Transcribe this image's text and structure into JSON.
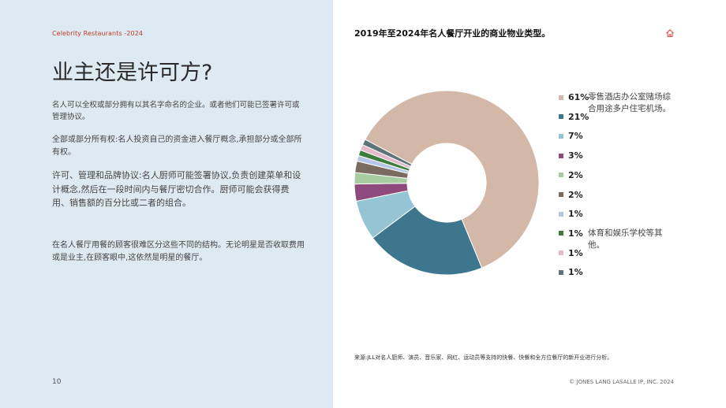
{
  "header": {
    "running_head": "Celebrity Restaurants -2024"
  },
  "left": {
    "title": "业主还是许可方?",
    "paragraphs": [
      "名人可以全权或部分拥有以其名字命名的企业。或者他们可能已签署许可或管理协议。",
      "全部或部分所有权:名人投资自己的资金进入餐厅概念,承担部分或全部所有权。",
      "许可、管理和品牌协议:名人厨师可能签署协议,负责创建菜单和设计概念,然后在一段时间内与餐厅密切合作。厨师可能会获得费用、销售额的百分比或二者的组合。",
      "在名人餐厅用餐的顾客很难区分这些不同的结构。无论明星是否收取费用或是业主,在顾客眼中,这依然是明星的餐厅。"
    ]
  },
  "footer": {
    "page_number": "10",
    "source": "来源:JLL对名人厨师、演员、音乐家、网红、运动员等支持的快餐、快餐和全方位餐厅的新开业进行分析。",
    "copyright": "© JONES LANG LASALLE IP, INC. 2024"
  },
  "icons": {
    "home": "home-icon"
  },
  "chart_data": {
    "type": "pie",
    "donut": true,
    "title": "2019年至2024年名人餐厅开业的商业物业类型。",
    "slices": [
      {
        "label": "61%",
        "value": 61,
        "color": "#d4b8a7"
      },
      {
        "label": "21%",
        "value": 21,
        "color": "#3e768d"
      },
      {
        "label": "7%",
        "value": 7,
        "color": "#95c4d4"
      },
      {
        "label": "3%",
        "value": 3,
        "color": "#8f4a7d"
      },
      {
        "label": "2%",
        "value": 2,
        "color": "#a6cc9f"
      },
      {
        "label": "2%",
        "value": 2,
        "color": "#7b6a5f"
      },
      {
        "label": "1%",
        "value": 1,
        "color": "#b6c6e6"
      },
      {
        "label": "1%",
        "value": 1,
        "color": "#3d7d3c"
      },
      {
        "label": "1%",
        "value": 1,
        "color": "#e4b9c9"
      },
      {
        "label": "1%",
        "value": 1,
        "color": "#5f7278"
      }
    ],
    "legend_notes": [
      "零售酒店办公室赌场综合用途多户住宅机场。",
      "体育和娱乐学校等其他。"
    ],
    "legend_position": "right"
  }
}
